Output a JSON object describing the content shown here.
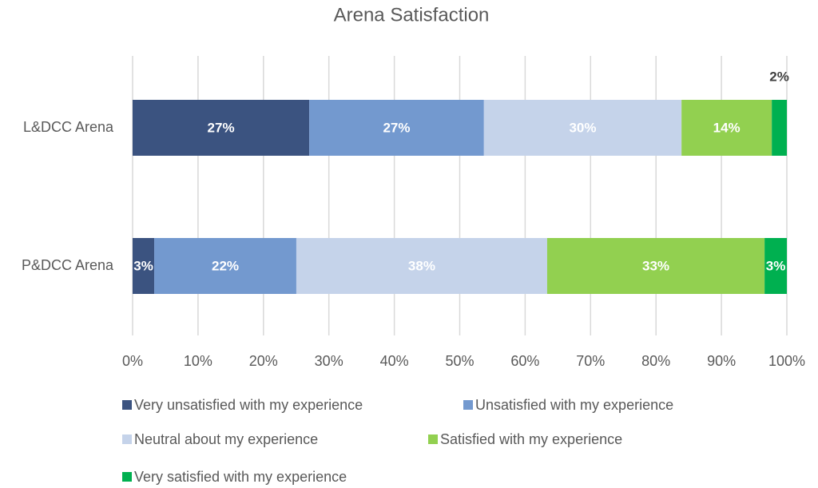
{
  "chart_data": {
    "type": "stacked_bar_horizontal_percent",
    "title": "Arena Satisfaction",
    "categories": [
      "L&DCC Arena",
      "P&DCC Arena"
    ],
    "series": [
      {
        "name": "Very unsatisfied with my experience",
        "color": "#3b5380",
        "values": [
          27,
          3.3
        ],
        "value_labels": [
          "27%",
          "3%"
        ]
      },
      {
        "name": "Unsatisfied with my experience",
        "color": "#7399cf",
        "values": [
          26.7,
          21.7
        ],
        "value_labels": [
          "27%",
          "22%"
        ]
      },
      {
        "name": "Neutral about my experience",
        "color": "#c5d3ea",
        "values": [
          30.2,
          38.3
        ],
        "value_labels": [
          "30%",
          "38%"
        ]
      },
      {
        "name": "Satisfied with my experience",
        "color": "#92d050",
        "values": [
          13.8,
          33.2
        ],
        "value_labels": [
          "14%",
          "33%"
        ]
      },
      {
        "name": "Very satisfied with my experience",
        "color": "#00b050",
        "values": [
          2.3,
          3.4
        ],
        "value_labels": [
          "2%",
          "3%"
        ]
      }
    ],
    "xlim": [
      0,
      100
    ],
    "xticks": [
      {
        "value": 0,
        "label": "0%"
      },
      {
        "value": 10,
        "label": "10%"
      },
      {
        "value": 20,
        "label": "20%"
      },
      {
        "value": 30,
        "label": "30%"
      },
      {
        "value": 40,
        "label": "40%"
      },
      {
        "value": 50,
        "label": "50%"
      },
      {
        "value": 60,
        "label": "60%"
      },
      {
        "value": 70,
        "label": "70%"
      },
      {
        "value": 80,
        "label": "80%"
      },
      {
        "value": 90,
        "label": "90%"
      },
      {
        "value": 100,
        "label": "100%"
      }
    ],
    "grid": true,
    "legend": "bottom"
  }
}
